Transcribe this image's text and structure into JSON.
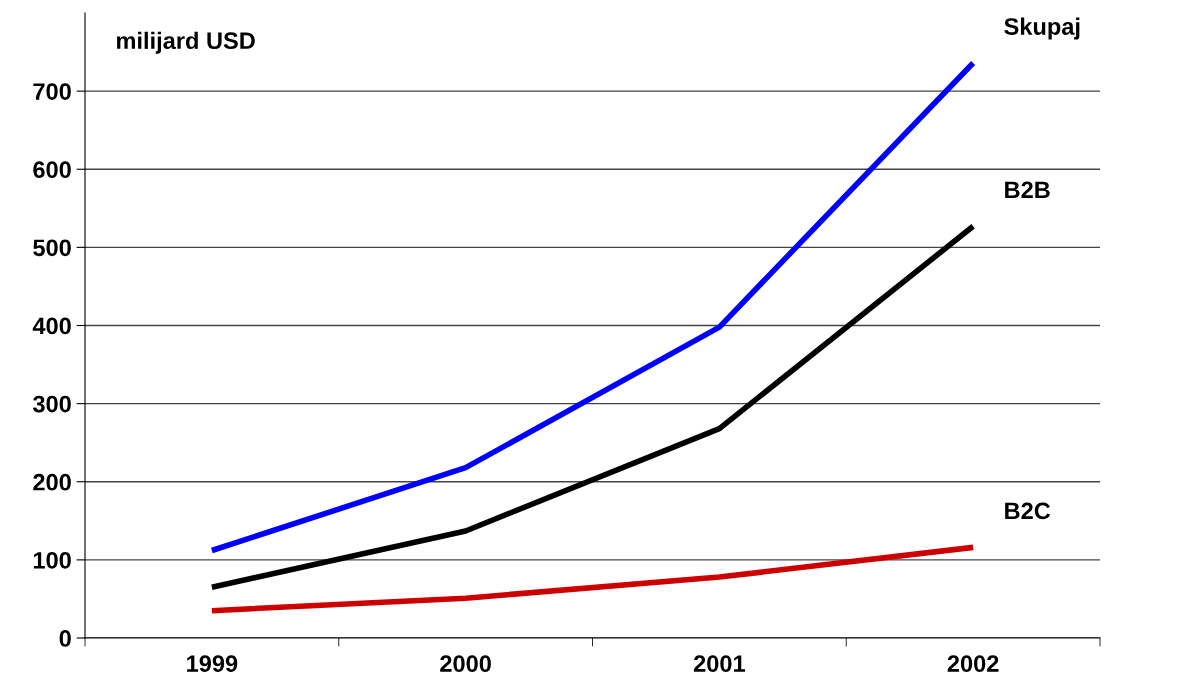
{
  "chart_data": {
    "type": "line",
    "ylabel": "milijard USD",
    "categories": [
      "1999",
      "2000",
      "2001",
      "2002"
    ],
    "series": [
      {
        "name": "Skupaj",
        "color": "#0000ff",
        "values": [
          112,
          218,
          398,
          736
        ]
      },
      {
        "name": "B2B",
        "color": "#000000",
        "values": [
          65,
          137,
          268,
          527
        ]
      },
      {
        "name": "B2C",
        "color": "#cc0000",
        "values": [
          35,
          51,
          78,
          116
        ]
      }
    ],
    "ylim": [
      0,
      800
    ],
    "yticks": [
      0,
      100,
      200,
      300,
      400,
      500,
      600,
      700
    ],
    "grid": "y",
    "legend": false,
    "marker": "none",
    "line_style": "solid"
  }
}
